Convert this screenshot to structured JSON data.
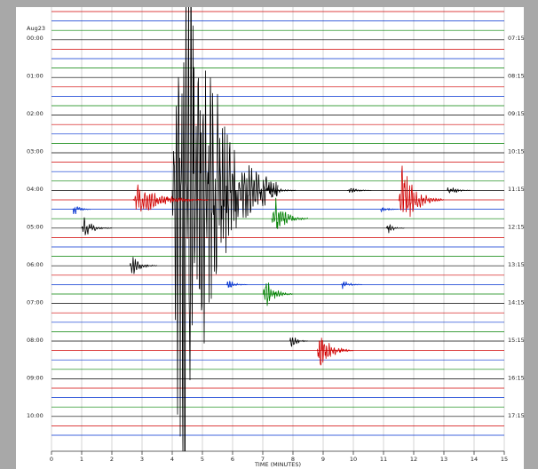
{
  "chart_data": {
    "type": "helicorder",
    "date_label": "Aug23",
    "xlabel": "TIME (MINUTES)",
    "xlim": [
      0,
      15
    ],
    "xticks": [
      0,
      1,
      2,
      3,
      4,
      5,
      6,
      7,
      8,
      9,
      10,
      11,
      12,
      13,
      14,
      15
    ],
    "left_labels": [
      "00:00",
      "01:00",
      "02:00",
      "03:00",
      "04:00",
      "05:00",
      "06:00",
      "07:00",
      "08:00",
      "09:00",
      "10:00"
    ],
    "right_labels": [
      "07:15",
      "08:15",
      "09:15",
      "10:15",
      "11:15",
      "12:15",
      "13:15",
      "14:15",
      "15:15",
      "16:15",
      "17:15"
    ],
    "traces": [
      "#d00000",
      "#0030d0",
      "#008000",
      "#000000",
      "#d00000",
      "#0030d0",
      "#008000",
      "#000000",
      "#d00000",
      "#0030d0",
      "#008000",
      "#000000",
      "#d00000",
      "#0030d0",
      "#008000",
      "#000000",
      "#d00000",
      "#0030d0",
      "#008000",
      "#000000",
      "#d00000",
      "#0030d0",
      "#008000",
      "#000000",
      "#d00000",
      "#0030d0",
      "#008000",
      "#000000",
      "#d00000",
      "#0030d0",
      "#008000",
      "#000000",
      "#d00000",
      "#0030d0",
      "#008000",
      "#000000",
      "#d00000",
      "#0030d0",
      "#008000",
      "#000000",
      "#d00000",
      "#0030d0",
      "#008000",
      "#000000",
      "#d00000",
      "#0030d0"
    ],
    "events": [
      {
        "trace": 19,
        "time": 4.0,
        "amplitude": 50,
        "duration": 3.5
      },
      {
        "trace": 20,
        "time": 2.7,
        "amplitude": 2.5,
        "duration": 2.5
      },
      {
        "trace": 20,
        "time": 11.5,
        "amplitude": 5,
        "duration": 1.5
      },
      {
        "trace": 19,
        "time": 7.1,
        "amplitude": 1,
        "duration": 1
      },
      {
        "trace": 19,
        "time": 9.8,
        "amplitude": 0.6,
        "duration": 0.8
      },
      {
        "trace": 19,
        "time": 13.1,
        "amplitude": 0.8,
        "duration": 0.8
      },
      {
        "trace": 21,
        "time": 0.7,
        "amplitude": 1,
        "duration": 0.6
      },
      {
        "trace": 21,
        "time": 10.9,
        "amplitude": 0.6,
        "duration": 0.6
      },
      {
        "trace": 22,
        "time": 7.3,
        "amplitude": 3,
        "duration": 1.2
      },
      {
        "trace": 23,
        "time": 1.0,
        "amplitude": 1.5,
        "duration": 1
      },
      {
        "trace": 23,
        "time": 11.1,
        "amplitude": 0.8,
        "duration": 0.6
      },
      {
        "trace": 27,
        "time": 2.6,
        "amplitude": 1.5,
        "duration": 0.9
      },
      {
        "trace": 29,
        "time": 5.8,
        "amplitude": 0.7,
        "duration": 0.7
      },
      {
        "trace": 29,
        "time": 9.6,
        "amplitude": 0.7,
        "duration": 0.7
      },
      {
        "trace": 30,
        "time": 7.0,
        "amplitude": 2.5,
        "duration": 1
      },
      {
        "trace": 35,
        "time": 7.9,
        "amplitude": 1.2,
        "duration": 0.6
      },
      {
        "trace": 36,
        "time": 8.8,
        "amplitude": 3,
        "duration": 1.2
      }
    ]
  }
}
